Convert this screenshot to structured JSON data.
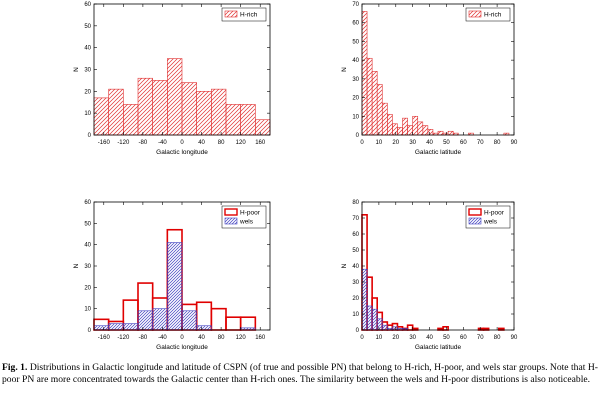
{
  "chart_data": [
    {
      "type": "bar",
      "id": "top-left",
      "title": "",
      "xlabel": "Galactic longitude",
      "ylabel": "N",
      "xlim": [
        -180,
        180
      ],
      "ylim": [
        0,
        60
      ],
      "xticks": [
        "-160",
        "-120",
        "-80",
        "-40",
        "0",
        "40",
        "80",
        "120",
        "160"
      ],
      "xtick_values": [
        -160,
        -120,
        -80,
        -40,
        0,
        40,
        80,
        120,
        160
      ],
      "yticks": [
        "0",
        "10",
        "20",
        "30",
        "40",
        "50",
        "60"
      ],
      "ytick_values": [
        0,
        10,
        20,
        30,
        40,
        50,
        60
      ],
      "legend_position": "top-right",
      "series": [
        {
          "name": "H-rich",
          "style": "red-hatch",
          "bins": [
            -180,
            -150,
            -120,
            -90,
            -60,
            -30,
            0,
            30,
            60,
            90,
            120,
            150,
            180
          ],
          "values": [
            17,
            21,
            14,
            26,
            25,
            35,
            24,
            20,
            21,
            14,
            14,
            7
          ]
        }
      ]
    },
    {
      "type": "bar",
      "id": "top-right",
      "title": "",
      "xlabel": "Galactic latitude",
      "ylabel": "N",
      "xlim": [
        0,
        90
      ],
      "ylim": [
        0,
        70
      ],
      "xticks": [
        "0",
        "10",
        "20",
        "30",
        "40",
        "50",
        "60",
        "70",
        "80",
        "90"
      ],
      "xtick_values": [
        0,
        10,
        20,
        30,
        40,
        50,
        60,
        70,
        80,
        90
      ],
      "yticks": [
        "0",
        "10",
        "20",
        "30",
        "40",
        "50",
        "60",
        "70"
      ],
      "ytick_values": [
        0,
        10,
        20,
        30,
        40,
        50,
        60,
        70
      ],
      "legend_position": "top-right",
      "series": [
        {
          "name": "H-rich",
          "style": "red-hatch",
          "bins": [
            0,
            3,
            6,
            9,
            12,
            15,
            18,
            21,
            24,
            27,
            30,
            33,
            36,
            39,
            42,
            45,
            48,
            51,
            54,
            57,
            60,
            63,
            66,
            69,
            72,
            75,
            78,
            81,
            84,
            87,
            90
          ],
          "values": [
            66,
            41,
            34,
            27,
            17,
            11,
            6,
            4,
            9,
            5,
            10,
            7,
            5,
            3,
            1,
            2,
            1,
            2,
            1,
            0,
            0,
            1,
            0,
            0,
            0,
            0,
            0,
            0,
            1,
            0
          ]
        }
      ]
    },
    {
      "type": "bar",
      "id": "bottom-left",
      "title": "",
      "xlabel": "Galactic longitude",
      "ylabel": "N",
      "xlim": [
        -180,
        180
      ],
      "ylim": [
        0,
        60
      ],
      "xticks": [
        "-160",
        "-120",
        "-80",
        "-40",
        "0",
        "40",
        "80",
        "120",
        "160"
      ],
      "xtick_values": [
        -160,
        -120,
        -80,
        -40,
        0,
        40,
        80,
        120,
        160
      ],
      "yticks": [
        "0",
        "10",
        "20",
        "30",
        "40",
        "50",
        "60"
      ],
      "ytick_values": [
        0,
        10,
        20,
        30,
        40,
        50,
        60
      ],
      "legend_position": "top-right",
      "series": [
        {
          "name": "H-poor",
          "style": "red-outline",
          "bins": [
            -180,
            -150,
            -120,
            -90,
            -60,
            -30,
            0,
            30,
            60,
            90,
            120,
            150,
            180
          ],
          "values": [
            5,
            4,
            14,
            22,
            15,
            47,
            12,
            13,
            10,
            6,
            6,
            0
          ]
        },
        {
          "name": "wels",
          "style": "blue-hatch",
          "bins": [
            -180,
            -150,
            -120,
            -90,
            -60,
            -30,
            0,
            30,
            60,
            90,
            120,
            150,
            180
          ],
          "values": [
            2,
            3,
            3,
            9,
            10,
            41,
            9,
            2,
            0,
            0,
            1,
            0
          ]
        }
      ]
    },
    {
      "type": "bar",
      "id": "bottom-right",
      "title": "",
      "xlabel": "Galactic latitude",
      "ylabel": "N",
      "xlim": [
        0,
        90
      ],
      "ylim": [
        0,
        80
      ],
      "xticks": [
        "0",
        "10",
        "20",
        "30",
        "40",
        "50",
        "60",
        "70",
        "80",
        "90"
      ],
      "xtick_values": [
        0,
        10,
        20,
        30,
        40,
        50,
        60,
        70,
        80,
        90
      ],
      "yticks": [
        "0",
        "10",
        "20",
        "30",
        "40",
        "50",
        "60",
        "70",
        "80"
      ],
      "ytick_values": [
        0,
        10,
        20,
        30,
        40,
        50,
        60,
        70,
        80
      ],
      "legend_position": "top-right",
      "series": [
        {
          "name": "H-poor",
          "style": "red-outline",
          "bins": [
            0,
            3,
            6,
            9,
            12,
            15,
            18,
            21,
            24,
            27,
            30,
            33,
            36,
            39,
            42,
            45,
            48,
            51,
            54,
            57,
            60,
            63,
            66,
            69,
            72,
            75,
            78,
            81,
            84,
            87,
            90
          ],
          "values": [
            72,
            33,
            20,
            11,
            5,
            3,
            4,
            2,
            1,
            3,
            1,
            0,
            0,
            0,
            0,
            1,
            2,
            0,
            0,
            0,
            0,
            0,
            0,
            1,
            1,
            0,
            0,
            1,
            0,
            0
          ]
        },
        {
          "name": "wels",
          "style": "blue-hatch",
          "bins": [
            0,
            3,
            6,
            9,
            12,
            15,
            18,
            21,
            24,
            27,
            30,
            33,
            36,
            39,
            42,
            45,
            48,
            51,
            54,
            57,
            60,
            63,
            66,
            69,
            72,
            75,
            78,
            81,
            84,
            87,
            90
          ],
          "values": [
            38,
            15,
            13,
            7,
            3,
            1,
            2,
            1,
            1,
            0,
            0,
            0,
            0,
            0,
            0,
            0,
            0,
            0,
            0,
            0,
            0,
            0,
            0,
            0,
            0,
            0,
            0,
            0,
            0,
            0
          ]
        }
      ]
    }
  ],
  "colors": {
    "h_rich": "#e03030",
    "h_poor": "#e00000",
    "wels": "#4040c0",
    "axis": "#000000"
  },
  "caption": {
    "label": "Fig. 1.",
    "text": "Distributions in Galactic longitude and latitude of CSPN (of true and possible PN) that belong to H-rich, H-poor, and wels star groups. Note that H-poor PN are more concentrated towards the Galactic center than H-rich ones. The similarity between the wels and H-poor distributions is also noticeable."
  }
}
